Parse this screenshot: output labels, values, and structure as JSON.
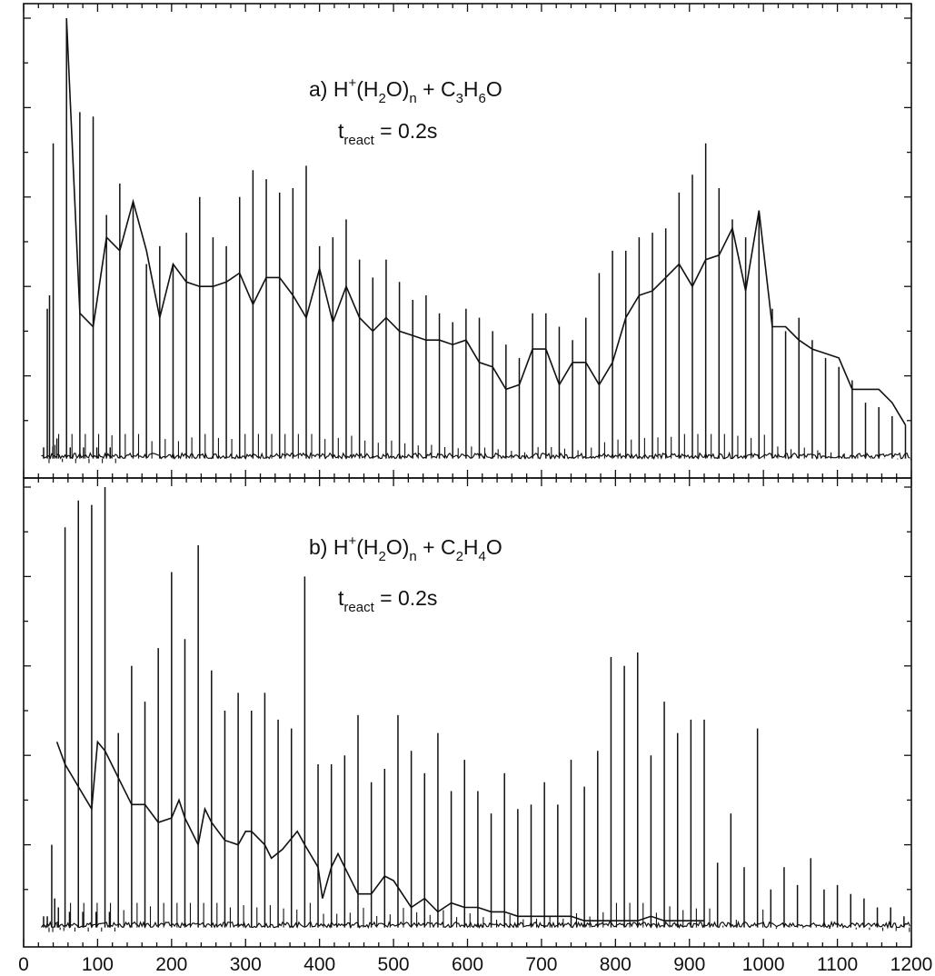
{
  "chart_data": [
    {
      "type": "line",
      "panel": "a",
      "title": "a) H⁺(H₂O)ₙ + C₃H₆O",
      "title_parts": {
        "label": "a) H",
        "sup": "+",
        "mid1": "(H",
        "sub1": "2",
        "mid2": "O)",
        "sub2": "n",
        "mid3": " + C",
        "sub3": "3",
        "mid4": "H",
        "sub4": "6",
        "mid5": "O"
      },
      "condition": {
        "t": "t",
        "sub": "react",
        "value": " = 0.2s"
      },
      "xlim": [
        0,
        1200
      ],
      "ylim": [
        0,
        100
      ],
      "grid": false,
      "baseline": 1.5,
      "peaks": [
        {
          "x": 27,
          "y": 4
        },
        {
          "x": 32,
          "y": 35
        },
        {
          "x": 35,
          "y": 38
        },
        {
          "x": 40,
          "y": 72
        },
        {
          "x": 45,
          "y": 6
        },
        {
          "x": 58,
          "y": 100
        },
        {
          "x": 63,
          "y": 4
        },
        {
          "x": 76,
          "y": 79
        },
        {
          "x": 81,
          "y": 4
        },
        {
          "x": 94,
          "y": 78
        },
        {
          "x": 99,
          "y": 4
        },
        {
          "x": 112,
          "y": 56
        },
        {
          "x": 117,
          "y": 4
        },
        {
          "x": 130,
          "y": 63
        },
        {
          "x": 148,
          "y": 59
        },
        {
          "x": 166,
          "y": 45
        },
        {
          "x": 184,
          "y": 49
        },
        {
          "x": 202,
          "y": 45
        },
        {
          "x": 220,
          "y": 52
        },
        {
          "x": 238,
          "y": 60
        },
        {
          "x": 256,
          "y": 51
        },
        {
          "x": 274,
          "y": 49
        },
        {
          "x": 292,
          "y": 60
        },
        {
          "x": 310,
          "y": 66
        },
        {
          "x": 328,
          "y": 64
        },
        {
          "x": 346,
          "y": 61
        },
        {
          "x": 364,
          "y": 62
        },
        {
          "x": 382,
          "y": 67
        },
        {
          "x": 400,
          "y": 49
        },
        {
          "x": 418,
          "y": 51
        },
        {
          "x": 436,
          "y": 55
        },
        {
          "x": 454,
          "y": 46
        },
        {
          "x": 472,
          "y": 42
        },
        {
          "x": 490,
          "y": 46
        },
        {
          "x": 508,
          "y": 41
        },
        {
          "x": 526,
          "y": 37
        },
        {
          "x": 544,
          "y": 38
        },
        {
          "x": 562,
          "y": 34
        },
        {
          "x": 580,
          "y": 32
        },
        {
          "x": 598,
          "y": 35
        },
        {
          "x": 616,
          "y": 33
        },
        {
          "x": 634,
          "y": 30
        },
        {
          "x": 652,
          "y": 27
        },
        {
          "x": 670,
          "y": 24
        },
        {
          "x": 688,
          "y": 34
        },
        {
          "x": 706,
          "y": 34
        },
        {
          "x": 724,
          "y": 31
        },
        {
          "x": 742,
          "y": 28
        },
        {
          "x": 760,
          "y": 33
        },
        {
          "x": 778,
          "y": 43
        },
        {
          "x": 796,
          "y": 48
        },
        {
          "x": 814,
          "y": 48
        },
        {
          "x": 832,
          "y": 51
        },
        {
          "x": 850,
          "y": 52
        },
        {
          "x": 868,
          "y": 53
        },
        {
          "x": 886,
          "y": 61
        },
        {
          "x": 904,
          "y": 65
        },
        {
          "x": 922,
          "y": 72
        },
        {
          "x": 940,
          "y": 62
        },
        {
          "x": 958,
          "y": 55
        },
        {
          "x": 976,
          "y": 51
        },
        {
          "x": 994,
          "y": 57
        },
        {
          "x": 1012,
          "y": 35
        },
        {
          "x": 1030,
          "y": 30
        },
        {
          "x": 1048,
          "y": 33
        },
        {
          "x": 1066,
          "y": 28
        },
        {
          "x": 1084,
          "y": 24
        },
        {
          "x": 1102,
          "y": 22
        },
        {
          "x": 1120,
          "y": 19
        },
        {
          "x": 1138,
          "y": 14
        },
        {
          "x": 1156,
          "y": 13
        },
        {
          "x": 1174,
          "y": 11
        },
        {
          "x": 1192,
          "y": 9
        }
      ],
      "envelope": [
        {
          "x": 58,
          "y": 100
        },
        {
          "x": 76,
          "y": 34
        },
        {
          "x": 94,
          "y": 31
        },
        {
          "x": 112,
          "y": 51
        },
        {
          "x": 130,
          "y": 48
        },
        {
          "x": 148,
          "y": 59
        },
        {
          "x": 166,
          "y": 48
        },
        {
          "x": 184,
          "y": 33
        },
        {
          "x": 202,
          "y": 45
        },
        {
          "x": 220,
          "y": 41
        },
        {
          "x": 238,
          "y": 40
        },
        {
          "x": 256,
          "y": 40
        },
        {
          "x": 274,
          "y": 41
        },
        {
          "x": 292,
          "y": 43
        },
        {
          "x": 310,
          "y": 36
        },
        {
          "x": 328,
          "y": 42
        },
        {
          "x": 346,
          "y": 42
        },
        {
          "x": 364,
          "y": 38
        },
        {
          "x": 382,
          "y": 33
        },
        {
          "x": 400,
          "y": 44
        },
        {
          "x": 418,
          "y": 32
        },
        {
          "x": 436,
          "y": 40
        },
        {
          "x": 454,
          "y": 33
        },
        {
          "x": 472,
          "y": 30
        },
        {
          "x": 490,
          "y": 33
        },
        {
          "x": 508,
          "y": 30
        },
        {
          "x": 526,
          "y": 29
        },
        {
          "x": 544,
          "y": 28
        },
        {
          "x": 562,
          "y": 28
        },
        {
          "x": 580,
          "y": 27
        },
        {
          "x": 598,
          "y": 28
        },
        {
          "x": 616,
          "y": 23
        },
        {
          "x": 634,
          "y": 22
        },
        {
          "x": 652,
          "y": 17
        },
        {
          "x": 670,
          "y": 18
        },
        {
          "x": 688,
          "y": 26
        },
        {
          "x": 706,
          "y": 26
        },
        {
          "x": 724,
          "y": 18
        },
        {
          "x": 742,
          "y": 23
        },
        {
          "x": 760,
          "y": 23
        },
        {
          "x": 778,
          "y": 18
        },
        {
          "x": 796,
          "y": 23
        },
        {
          "x": 814,
          "y": 33
        },
        {
          "x": 832,
          "y": 38
        },
        {
          "x": 850,
          "y": 39
        },
        {
          "x": 868,
          "y": 42
        },
        {
          "x": 886,
          "y": 45
        },
        {
          "x": 904,
          "y": 40
        },
        {
          "x": 922,
          "y": 46
        },
        {
          "x": 940,
          "y": 47
        },
        {
          "x": 958,
          "y": 53
        },
        {
          "x": 976,
          "y": 39
        },
        {
          "x": 994,
          "y": 57
        },
        {
          "x": 1012,
          "y": 31
        },
        {
          "x": 1030,
          "y": 31
        },
        {
          "x": 1048,
          "y": 28
        },
        {
          "x": 1066,
          "y": 26
        },
        {
          "x": 1084,
          "y": 25
        },
        {
          "x": 1102,
          "y": 24
        },
        {
          "x": 1120,
          "y": 17
        },
        {
          "x": 1138,
          "y": 17
        },
        {
          "x": 1156,
          "y": 17
        },
        {
          "x": 1174,
          "y": 14
        },
        {
          "x": 1192,
          "y": 9
        }
      ]
    },
    {
      "type": "line",
      "panel": "b",
      "title": "b) H⁺(H₂O)ₙ + C₂H₄O",
      "title_parts": {
        "label": "b) H",
        "sup": "+",
        "mid1": "(H",
        "sub1": "2",
        "mid2": "O)",
        "sub2": "n",
        "mid3": " + C",
        "sub3": "2",
        "mid4": "H",
        "sub4": "4",
        "mid5": "O"
      },
      "condition": {
        "t": "t",
        "sub": "react",
        "value": " = 0.2s"
      },
      "xlim": [
        0,
        1200
      ],
      "ylim": [
        0,
        100
      ],
      "grid": false,
      "baseline": 1.5,
      "xticks": [
        0,
        100,
        200,
        300,
        400,
        500,
        600,
        700,
        800,
        900,
        1000,
        1100,
        1200
      ],
      "peaks": [
        {
          "x": 27,
          "y": 4
        },
        {
          "x": 32,
          "y": 4
        },
        {
          "x": 38,
          "y": 20
        },
        {
          "x": 42,
          "y": 8
        },
        {
          "x": 47,
          "y": 6
        },
        {
          "x": 56,
          "y": 91
        },
        {
          "x": 62,
          "y": 5
        },
        {
          "x": 74,
          "y": 97
        },
        {
          "x": 80,
          "y": 5
        },
        {
          "x": 92,
          "y": 96
        },
        {
          "x": 98,
          "y": 5
        },
        {
          "x": 110,
          "y": 100
        },
        {
          "x": 116,
          "y": 5
        },
        {
          "x": 128,
          "y": 45
        },
        {
          "x": 146,
          "y": 60
        },
        {
          "x": 164,
          "y": 52
        },
        {
          "x": 182,
          "y": 64
        },
        {
          "x": 200,
          "y": 81
        },
        {
          "x": 218,
          "y": 66
        },
        {
          "x": 236,
          "y": 87
        },
        {
          "x": 254,
          "y": 59
        },
        {
          "x": 272,
          "y": 50
        },
        {
          "x": 290,
          "y": 54
        },
        {
          "x": 308,
          "y": 50
        },
        {
          "x": 326,
          "y": 54
        },
        {
          "x": 344,
          "y": 48
        },
        {
          "x": 362,
          "y": 46
        },
        {
          "x": 380,
          "y": 80
        },
        {
          "x": 398,
          "y": 38
        },
        {
          "x": 416,
          "y": 38
        },
        {
          "x": 434,
          "y": 40
        },
        {
          "x": 452,
          "y": 49
        },
        {
          "x": 470,
          "y": 34
        },
        {
          "x": 488,
          "y": 37
        },
        {
          "x": 506,
          "y": 49
        },
        {
          "x": 524,
          "y": 41
        },
        {
          "x": 542,
          "y": 36
        },
        {
          "x": 560,
          "y": 45
        },
        {
          "x": 578,
          "y": 32
        },
        {
          "x": 596,
          "y": 39
        },
        {
          "x": 614,
          "y": 32
        },
        {
          "x": 632,
          "y": 27
        },
        {
          "x": 650,
          "y": 36
        },
        {
          "x": 668,
          "y": 28
        },
        {
          "x": 686,
          "y": 29
        },
        {
          "x": 704,
          "y": 34
        },
        {
          "x": 722,
          "y": 29
        },
        {
          "x": 740,
          "y": 39
        },
        {
          "x": 758,
          "y": 33
        },
        {
          "x": 776,
          "y": 41
        },
        {
          "x": 794,
          "y": 62
        },
        {
          "x": 812,
          "y": 60
        },
        {
          "x": 830,
          "y": 63
        },
        {
          "x": 848,
          "y": 40
        },
        {
          "x": 866,
          "y": 52
        },
        {
          "x": 884,
          "y": 45
        },
        {
          "x": 902,
          "y": 48
        },
        {
          "x": 920,
          "y": 48
        },
        {
          "x": 938,
          "y": 16
        },
        {
          "x": 956,
          "y": 27
        },
        {
          "x": 974,
          "y": 15
        },
        {
          "x": 992,
          "y": 46
        },
        {
          "x": 1010,
          "y": 10
        },
        {
          "x": 1028,
          "y": 15
        },
        {
          "x": 1046,
          "y": 11
        },
        {
          "x": 1064,
          "y": 17
        },
        {
          "x": 1082,
          "y": 10
        },
        {
          "x": 1100,
          "y": 11
        },
        {
          "x": 1118,
          "y": 9
        },
        {
          "x": 1136,
          "y": 8
        },
        {
          "x": 1154,
          "y": 6
        },
        {
          "x": 1172,
          "y": 6
        },
        {
          "x": 1190,
          "y": 4
        }
      ],
      "envelope": [
        {
          "x": 45,
          "y": 43
        },
        {
          "x": 56,
          "y": 38
        },
        {
          "x": 74,
          "y": 33
        },
        {
          "x": 92,
          "y": 28
        },
        {
          "x": 100,
          "y": 43
        },
        {
          "x": 110,
          "y": 41
        },
        {
          "x": 128,
          "y": 35
        },
        {
          "x": 146,
          "y": 29
        },
        {
          "x": 164,
          "y": 29
        },
        {
          "x": 182,
          "y": 25
        },
        {
          "x": 200,
          "y": 26
        },
        {
          "x": 210,
          "y": 30
        },
        {
          "x": 218,
          "y": 26
        },
        {
          "x": 236,
          "y": 20
        },
        {
          "x": 245,
          "y": 28
        },
        {
          "x": 254,
          "y": 25
        },
        {
          "x": 272,
          "y": 21
        },
        {
          "x": 290,
          "y": 20
        },
        {
          "x": 300,
          "y": 23
        },
        {
          "x": 308,
          "y": 23
        },
        {
          "x": 326,
          "y": 20
        },
        {
          "x": 335,
          "y": 17
        },
        {
          "x": 350,
          "y": 19
        },
        {
          "x": 370,
          "y": 23
        },
        {
          "x": 380,
          "y": 20
        },
        {
          "x": 398,
          "y": 15
        },
        {
          "x": 404,
          "y": 8
        },
        {
          "x": 416,
          "y": 15
        },
        {
          "x": 425,
          "y": 18
        },
        {
          "x": 434,
          "y": 15
        },
        {
          "x": 452,
          "y": 9
        },
        {
          "x": 470,
          "y": 9
        },
        {
          "x": 488,
          "y": 13
        },
        {
          "x": 500,
          "y": 12
        },
        {
          "x": 524,
          "y": 6
        },
        {
          "x": 542,
          "y": 8
        },
        {
          "x": 560,
          "y": 5
        },
        {
          "x": 578,
          "y": 7
        },
        {
          "x": 596,
          "y": 6
        },
        {
          "x": 614,
          "y": 6
        },
        {
          "x": 632,
          "y": 5
        },
        {
          "x": 650,
          "y": 5
        },
        {
          "x": 668,
          "y": 4
        },
        {
          "x": 686,
          "y": 4
        },
        {
          "x": 704,
          "y": 4
        },
        {
          "x": 722,
          "y": 4
        },
        {
          "x": 740,
          "y": 4
        },
        {
          "x": 758,
          "y": 3
        },
        {
          "x": 776,
          "y": 3
        },
        {
          "x": 794,
          "y": 3
        },
        {
          "x": 812,
          "y": 3
        },
        {
          "x": 830,
          "y": 3
        },
        {
          "x": 848,
          "y": 4
        },
        {
          "x": 866,
          "y": 3
        },
        {
          "x": 884,
          "y": 3
        },
        {
          "x": 902,
          "y": 3
        },
        {
          "x": 920,
          "y": 3
        }
      ]
    }
  ],
  "colors": {
    "ink": "#111111",
    "background": "#ffffff"
  }
}
